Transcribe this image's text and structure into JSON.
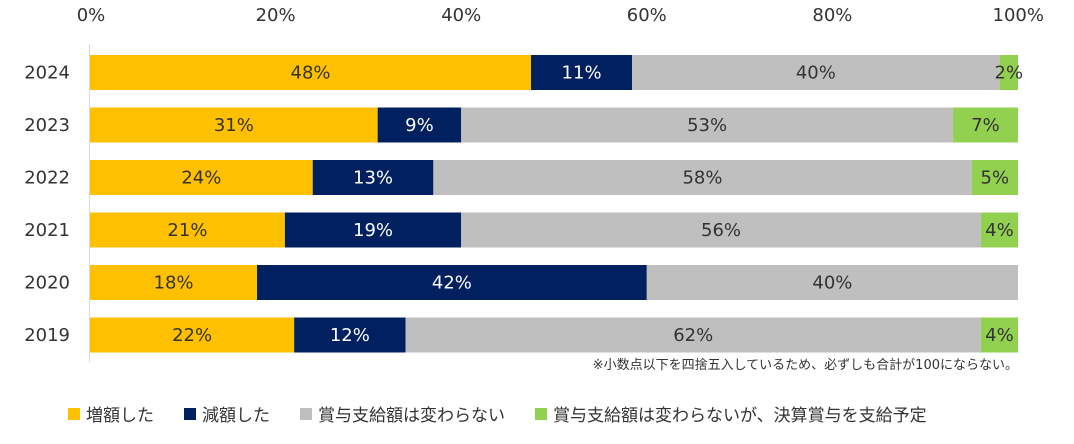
{
  "chart_data": {
    "type": "bar",
    "orientation": "horizontal",
    "stacked": true,
    "categories": [
      "2024",
      "2023",
      "2022",
      "2021",
      "2020",
      "2019"
    ],
    "series": [
      {
        "name": "増額した",
        "color": "#FFC000",
        "label_color": "#333333",
        "values": [
          48,
          31,
          24,
          21,
          18,
          22
        ]
      },
      {
        "name": "減額した",
        "color": "#002060",
        "label_color": "#ffffff",
        "values": [
          11,
          9,
          13,
          19,
          42,
          12
        ]
      },
      {
        "name": "賞与支給額は変わらない",
        "color": "#BFBFBF",
        "label_color": "#333333",
        "values": [
          40,
          53,
          58,
          56,
          40,
          62
        ]
      },
      {
        "name": "賞与支給額は変わらないが、決算賞与を支給予定",
        "color": "#92D050",
        "label_color": "#333333",
        "values": [
          2,
          7,
          5,
          4,
          0,
          4
        ]
      }
    ],
    "value_labels": [
      [
        "48%",
        "11%",
        "40%",
        "2%"
      ],
      [
        "31%",
        "9%",
        "53%",
        "7%"
      ],
      [
        "24%",
        "13%",
        "58%",
        "5%"
      ],
      [
        "21%",
        "19%",
        "56%",
        "4%"
      ],
      [
        "18%",
        "42%",
        "40%",
        ""
      ],
      [
        "22%",
        "12%",
        "62%",
        "4%"
      ]
    ],
    "xaxis": {
      "ticks": [
        "0%",
        "20%",
        "40%",
        "60%",
        "80%",
        "100%"
      ],
      "range": [
        0,
        100
      ]
    },
    "legend_position": "bottom",
    "footnote": "※小数点以下を四捨五入しているため、必ずしも合計が100にならない。"
  }
}
